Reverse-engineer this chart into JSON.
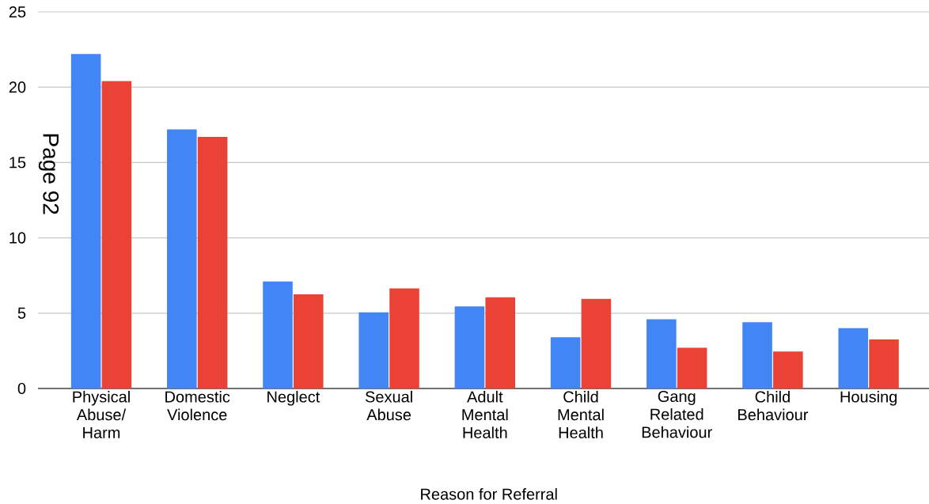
{
  "chart_data": {
    "type": "bar",
    "xlabel": "Reason for Referral",
    "categories": [
      "Physical Abuse/ Harm",
      "Domestic Violence",
      "Neglect",
      "Sexual Abuse",
      "Adult Mental Health",
      "Child Mental Health",
      "Gang Related Behaviour",
      "Child Behaviour",
      "Housing"
    ],
    "series": [
      {
        "color": "#4285f4",
        "values": [
          22.2,
          17.2,
          7.1,
          5.05,
          5.45,
          3.4,
          4.6,
          4.4,
          4.0
        ]
      },
      {
        "color": "#ea4335",
        "values": [
          20.4,
          16.7,
          6.25,
          6.65,
          6.05,
          5.95,
          2.7,
          2.45,
          3.25
        ]
      }
    ],
    "ylim": [
      0,
      25
    ],
    "yticks": [
      0,
      5,
      10,
      15,
      20,
      25
    ],
    "grid": "y",
    "annotations": [
      "Page 92"
    ]
  }
}
